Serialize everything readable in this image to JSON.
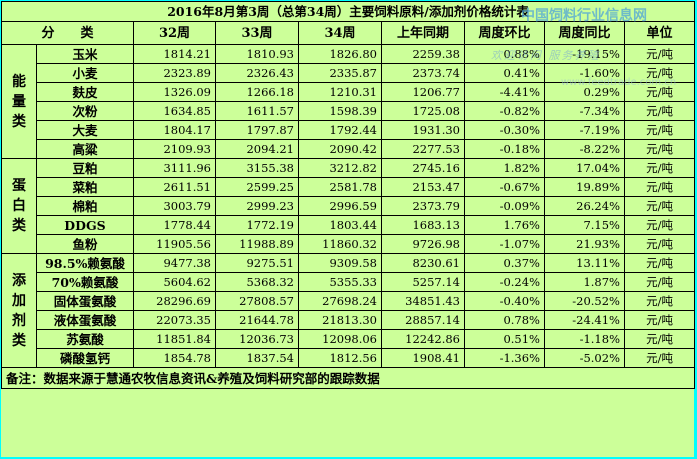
{
  "title": "2016年8月第3周（总第34周）主要饲料原料/添加剂价格统计表",
  "watermark": "中国饲料行业信息网",
  "watermark_sub": "欢迎访问 服务养殖",
  "watermark_url": "www.feedtrade.com.cn",
  "headers": [
    "分　　类",
    "32周",
    "33周",
    "34周",
    "上年同期",
    "周度环比",
    "周度同比",
    "单位"
  ],
  "groups": [
    {
      "category": [
        "能",
        "量",
        "类"
      ],
      "rows": [
        {
          "name": "玉米",
          "w32": "1814.21",
          "w33": "1810.93",
          "w34": "1826.80",
          "last_year": "2259.38",
          "wow": "0.88%",
          "yoy": "-19.15%",
          "unit": "元/吨"
        },
        {
          "name": "小麦",
          "w32": "2323.89",
          "w33": "2326.43",
          "w34": "2335.87",
          "last_year": "2373.74",
          "wow": "0.41%",
          "yoy": "-1.60%",
          "unit": "元/吨"
        },
        {
          "name": "麸皮",
          "w32": "1326.09",
          "w33": "1266.18",
          "w34": "1210.31",
          "last_year": "1206.77",
          "wow": "-4.41%",
          "yoy": "0.29%",
          "unit": "元/吨"
        },
        {
          "name": "次粉",
          "w32": "1634.85",
          "w33": "1611.57",
          "w34": "1598.39",
          "last_year": "1725.08",
          "wow": "-0.82%",
          "yoy": "-7.34%",
          "unit": "元/吨"
        },
        {
          "name": "大麦",
          "w32": "1804.17",
          "w33": "1797.87",
          "w34": "1792.44",
          "last_year": "1931.30",
          "wow": "-0.30%",
          "yoy": "-7.19%",
          "unit": "元/吨"
        },
        {
          "name": "高粱",
          "w32": "2109.93",
          "w33": "2094.21",
          "w34": "2090.42",
          "last_year": "2277.53",
          "wow": "-0.18%",
          "yoy": "-8.22%",
          "unit": "元/吨"
        }
      ]
    },
    {
      "category": [
        "蛋",
        "白",
        "类"
      ],
      "rows": [
        {
          "name": "豆粕",
          "w32": "3111.96",
          "w33": "3155.38",
          "w34": "3212.82",
          "last_year": "2745.16",
          "wow": "1.82%",
          "yoy": "17.04%",
          "unit": "元/吨"
        },
        {
          "name": "菜粕",
          "w32": "2611.51",
          "w33": "2599.25",
          "w34": "2581.78",
          "last_year": "2153.47",
          "wow": "-0.67%",
          "yoy": "19.89%",
          "unit": "元/吨"
        },
        {
          "name": "棉粕",
          "w32": "3003.79",
          "w33": "2999.23",
          "w34": "2996.59",
          "last_year": "2373.79",
          "wow": "-0.09%",
          "yoy": "26.24%",
          "unit": "元/吨"
        },
        {
          "name": "DDGS",
          "w32": "1778.44",
          "w33": "1772.19",
          "w34": "1803.44",
          "last_year": "1683.13",
          "wow": "1.76%",
          "yoy": "7.15%",
          "unit": "元/吨"
        },
        {
          "name": "鱼粉",
          "w32": "11905.56",
          "w33": "11988.89",
          "w34": "11860.32",
          "last_year": "9726.98",
          "wow": "-1.07%",
          "yoy": "21.93%",
          "unit": "元/吨"
        }
      ]
    },
    {
      "category": [
        "添",
        "加",
        "剂",
        "类"
      ],
      "rows": [
        {
          "name": "98.5%赖氨酸",
          "w32": "9477.38",
          "w33": "9275.51",
          "w34": "9309.58",
          "last_year": "8230.61",
          "wow": "0.37%",
          "yoy": "13.11%",
          "unit": "元/吨"
        },
        {
          "name": "70%赖氨酸",
          "w32": "5604.62",
          "w33": "5368.32",
          "w34": "5355.33",
          "last_year": "5257.14",
          "wow": "-0.24%",
          "yoy": "1.87%",
          "unit": "元/吨"
        },
        {
          "name": "固体蛋氨酸",
          "w32": "28296.69",
          "w33": "27808.57",
          "w34": "27698.24",
          "last_year": "34851.43",
          "wow": "-0.40%",
          "yoy": "-20.52%",
          "unit": "元/吨"
        },
        {
          "name": "液体蛋氨酸",
          "w32": "22073.35",
          "w33": "21644.78",
          "w34": "21813.30",
          "last_year": "28857.14",
          "wow": "0.78%",
          "yoy": "-24.41%",
          "unit": "元/吨"
        },
        {
          "name": "苏氨酸",
          "w32": "11851.84",
          "w33": "12036.73",
          "w34": "12098.06",
          "last_year": "12242.86",
          "wow": "0.51%",
          "yoy": "-1.18%",
          "unit": "元/吨"
        },
        {
          "name": "磷酸氢钙",
          "w32": "1854.78",
          "w33": "1837.54",
          "w34": "1812.56",
          "last_year": "1908.41",
          "wow": "-1.36%",
          "yoy": "-5.02%",
          "unit": "元/吨"
        }
      ]
    }
  ],
  "note": "备注：数据来源于慧通农牧信息资讯&养殖及饲料研究部的跟踪数据"
}
